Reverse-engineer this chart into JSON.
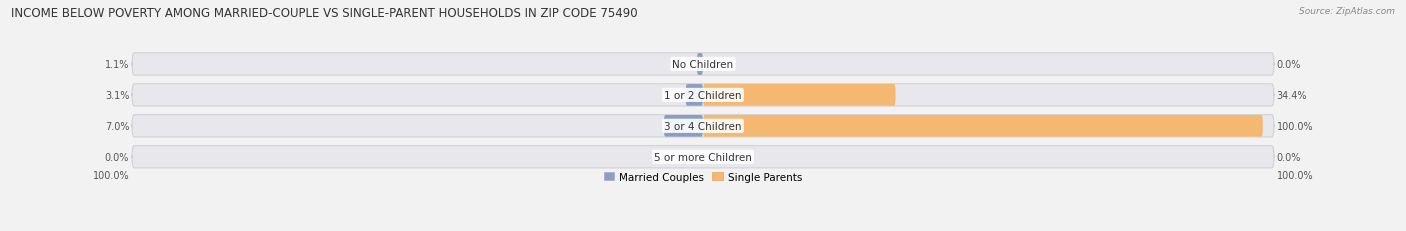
{
  "title": "INCOME BELOW POVERTY AMONG MARRIED-COUPLE VS SINGLE-PARENT HOUSEHOLDS IN ZIP CODE 75490",
  "source": "Source: ZipAtlas.com",
  "categories": [
    "No Children",
    "1 or 2 Children",
    "3 or 4 Children",
    "5 or more Children"
  ],
  "married_values": [
    1.1,
    3.1,
    7.0,
    0.0
  ],
  "single_values": [
    0.0,
    34.4,
    100.0,
    0.0
  ],
  "married_color": "#8B9DC3",
  "single_color": "#F5B870",
  "bar_bg_color": "#E8E8EC",
  "fig_bg_color": "#F2F2F2",
  "xlim": 100.0,
  "title_fontsize": 8.5,
  "label_fontsize": 7.5,
  "value_fontsize": 7.0,
  "legend_fontsize": 7.5,
  "source_fontsize": 6.5
}
